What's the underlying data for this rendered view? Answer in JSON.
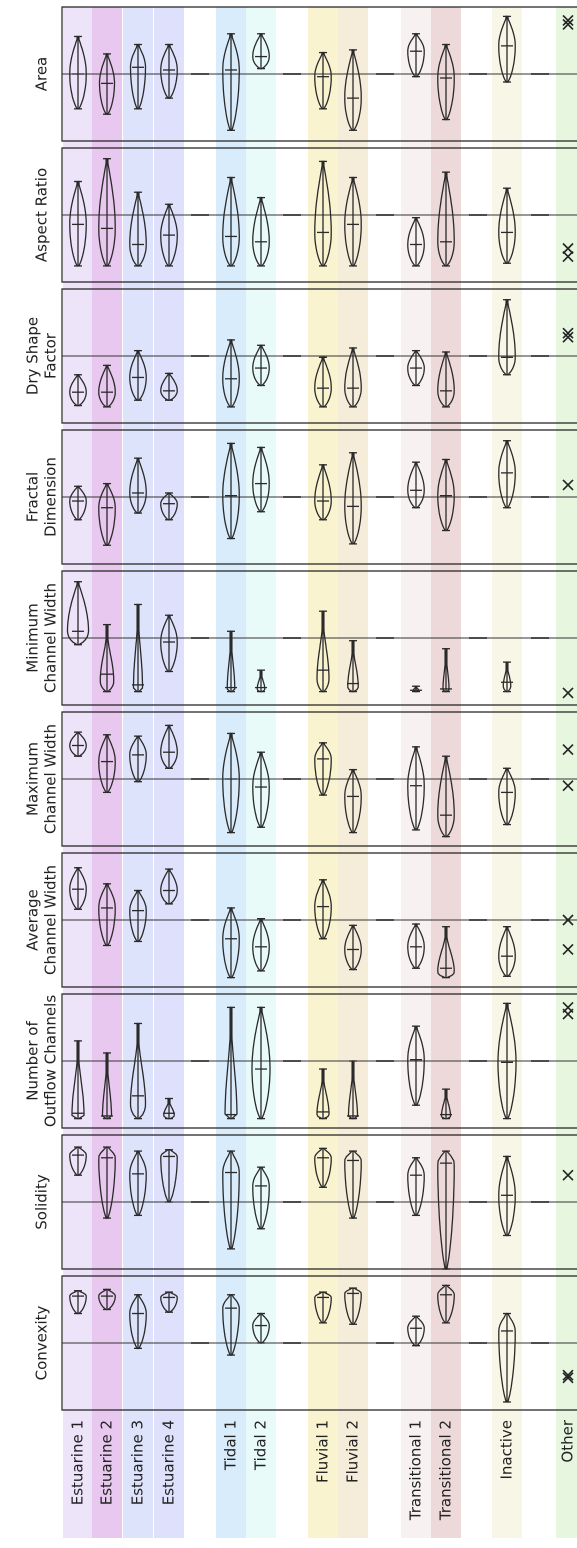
{
  "chart_data": {
    "type": "violin",
    "categories": [
      {
        "label": "Estuarine 1",
        "color": "#ede4fa"
      },
      {
        "label": "Estuarine 2",
        "color": "#e8c8ee"
      },
      {
        "label": "Estuarine 3",
        "color": "#dde3fa"
      },
      {
        "label": "Estuarine 4",
        "color": "#dfe0fb"
      },
      {
        "label": "Tidal 1",
        "color": "#d9ecfb"
      },
      {
        "label": "Tidal 2",
        "color": "#e8fbf8"
      },
      {
        "label": "Fluvial 1",
        "color": "#f9f3d0"
      },
      {
        "label": "Fluvial 2",
        "color": "#f6ecda"
      },
      {
        "label": "Transitional 1",
        "color": "#f7f1f2"
      },
      {
        "label": "Transitional 2",
        "color": "#eed9da"
      },
      {
        "label": "Inactive",
        "color": "#f8f6e6"
      },
      {
        "label": "Other",
        "color": "#e7f6df"
      }
    ],
    "panels": [
      {
        "ylabel": [
          "Area"
        ],
        "violins": [
          {
            "top": 0.22,
            "bot": 0.76,
            "med": 0.5,
            "w": 0.55
          },
          {
            "top": 0.35,
            "bot": 0.8,
            "med": 0.57,
            "w": 0.5
          },
          {
            "top": 0.28,
            "bot": 0.76,
            "med": 0.45,
            "w": 0.5
          },
          {
            "top": 0.28,
            "bot": 0.68,
            "med": 0.47,
            "w": 0.55
          },
          {
            "top": 0.2,
            "bot": 0.92,
            "med": 0.47,
            "w": 0.55
          },
          {
            "top": 0.2,
            "bot": 0.46,
            "med": 0.37,
            "w": 0.55
          },
          {
            "top": 0.34,
            "bot": 0.76,
            "med": 0.52,
            "w": 0.55
          },
          {
            "top": 0.32,
            "bot": 0.92,
            "med": 0.68,
            "w": 0.55
          },
          {
            "top": 0.2,
            "bot": 0.52,
            "med": 0.33,
            "w": 0.55
          },
          {
            "top": 0.28,
            "bot": 0.84,
            "med": 0.53,
            "w": 0.55
          },
          {
            "top": 0.07,
            "bot": 0.56,
            "med": 0.29,
            "w": 0.55
          },
          {
            "crosses": [
              0.1,
              0.13
            ]
          }
        ]
      },
      {
        "ylabel": [
          "Aspect Ratio"
        ],
        "violins": [
          {
            "top": 0.25,
            "bot": 0.88,
            "med": 0.57,
            "w": 0.55
          },
          {
            "top": 0.08,
            "bot": 0.88,
            "med": 0.6,
            "w": 0.55
          },
          {
            "top": 0.33,
            "bot": 0.88,
            "med": 0.72,
            "w": 0.55
          },
          {
            "top": 0.42,
            "bot": 0.88,
            "med": 0.65,
            "w": 0.55
          },
          {
            "top": 0.22,
            "bot": 0.88,
            "med": 0.66,
            "w": 0.55
          },
          {
            "top": 0.37,
            "bot": 0.88,
            "med": 0.7,
            "w": 0.55
          },
          {
            "top": 0.1,
            "bot": 0.88,
            "med": 0.63,
            "w": 0.55
          },
          {
            "top": 0.22,
            "bot": 0.88,
            "med": 0.57,
            "w": 0.55
          },
          {
            "top": 0.52,
            "bot": 0.88,
            "med": 0.72,
            "w": 0.55
          },
          {
            "top": 0.18,
            "bot": 0.88,
            "med": 0.7,
            "w": 0.55
          },
          {
            "top": 0.3,
            "bot": 0.86,
            "med": 0.63,
            "w": 0.55
          },
          {
            "crosses": [
              0.75,
              0.81
            ]
          }
        ]
      },
      {
        "ylabel": [
          "Dry Shape",
          "Factor"
        ],
        "violins": [
          {
            "top": 0.64,
            "bot": 0.87,
            "med": 0.77,
            "w": 0.55
          },
          {
            "top": 0.57,
            "bot": 0.88,
            "med": 0.77,
            "w": 0.55
          },
          {
            "top": 0.46,
            "bot": 0.83,
            "med": 0.66,
            "w": 0.55
          },
          {
            "top": 0.63,
            "bot": 0.83,
            "med": 0.76,
            "w": 0.55
          },
          {
            "top": 0.38,
            "bot": 0.88,
            "med": 0.67,
            "w": 0.55
          },
          {
            "top": 0.42,
            "bot": 0.72,
            "med": 0.59,
            "w": 0.55
          },
          {
            "top": 0.51,
            "bot": 0.88,
            "med": 0.74,
            "w": 0.55
          },
          {
            "top": 0.44,
            "bot": 0.88,
            "med": 0.74,
            "w": 0.55
          },
          {
            "top": 0.46,
            "bot": 0.72,
            "med": 0.59,
            "w": 0.55
          },
          {
            "top": 0.47,
            "bot": 0.88,
            "med": 0.76,
            "w": 0.55
          },
          {
            "top": 0.08,
            "bot": 0.64,
            "med": 0.51,
            "w": 0.55
          },
          {
            "crosses": [
              0.33,
              0.36
            ]
          }
        ]
      },
      {
        "ylabel": [
          "Fractal",
          "Dimension"
        ],
        "violins": [
          {
            "top": 0.42,
            "bot": 0.67,
            "med": 0.53,
            "w": 0.55
          },
          {
            "top": 0.4,
            "bot": 0.86,
            "med": 0.58,
            "w": 0.55
          },
          {
            "top": 0.21,
            "bot": 0.62,
            "med": 0.47,
            "w": 0.55
          },
          {
            "top": 0.47,
            "bot": 0.67,
            "med": 0.55,
            "w": 0.55
          },
          {
            "top": 0.1,
            "bot": 0.81,
            "med": 0.49,
            "w": 0.55
          },
          {
            "top": 0.13,
            "bot": 0.61,
            "med": 0.4,
            "w": 0.55
          },
          {
            "top": 0.26,
            "bot": 0.67,
            "med": 0.53,
            "w": 0.55
          },
          {
            "top": 0.17,
            "bot": 0.85,
            "med": 0.57,
            "w": 0.55
          },
          {
            "top": 0.24,
            "bot": 0.58,
            "med": 0.45,
            "w": 0.55
          },
          {
            "top": 0.22,
            "bot": 0.75,
            "med": 0.49,
            "w": 0.55
          },
          {
            "top": 0.08,
            "bot": 0.58,
            "med": 0.32,
            "w": 0.55
          },
          {
            "crosses": [
              0.41
            ]
          }
        ]
      },
      {
        "ylabel": [
          "Minimum",
          "Channel Width"
        ],
        "violins": [
          {
            "top": 0.08,
            "bot": 0.55,
            "med": 0.45,
            "w": 0.7
          },
          {
            "top": 0.4,
            "bot": 0.9,
            "med": 0.77,
            "w": 0.45,
            "skew": 1
          },
          {
            "top": 0.25,
            "bot": 0.9,
            "med": 0.85,
            "w": 0.3,
            "skew": 1
          },
          {
            "top": 0.33,
            "bot": 0.75,
            "med": 0.53,
            "w": 0.55
          },
          {
            "top": 0.45,
            "bot": 0.9,
            "med": 0.87,
            "w": 0.25,
            "skew": 1
          },
          {
            "top": 0.74,
            "bot": 0.9,
            "med": 0.87,
            "w": 0.25,
            "skew": 1
          },
          {
            "top": 0.3,
            "bot": 0.9,
            "med": 0.74,
            "w": 0.4,
            "skew": 1
          },
          {
            "top": 0.52,
            "bot": 0.9,
            "med": 0.84,
            "w": 0.35,
            "skew": 1
          },
          {
            "top": 0.86,
            "bot": 0.9,
            "med": 0.89,
            "w": 0.2,
            "skew": 1
          },
          {
            "top": 0.58,
            "bot": 0.9,
            "med": 0.88,
            "w": 0.2,
            "skew": 1
          },
          {
            "top": 0.68,
            "bot": 0.9,
            "med": 0.83,
            "w": 0.25,
            "skew": 1
          },
          {
            "crosses": [
              0.91
            ]
          }
        ]
      },
      {
        "ylabel": [
          "Maximum",
          "Channel Width"
        ],
        "violins": [
          {
            "top": 0.15,
            "bot": 0.33,
            "med": 0.25,
            "w": 0.55
          },
          {
            "top": 0.17,
            "bot": 0.6,
            "med": 0.37,
            "w": 0.55
          },
          {
            "top": 0.18,
            "bot": 0.52,
            "med": 0.32,
            "w": 0.55
          },
          {
            "top": 0.1,
            "bot": 0.42,
            "med": 0.3,
            "w": 0.55
          },
          {
            "top": 0.16,
            "bot": 0.9,
            "med": 0.5,
            "w": 0.55
          },
          {
            "top": 0.3,
            "bot": 0.86,
            "med": 0.56,
            "w": 0.55
          },
          {
            "top": 0.23,
            "bot": 0.62,
            "med": 0.35,
            "w": 0.55
          },
          {
            "top": 0.43,
            "bot": 0.9,
            "med": 0.63,
            "w": 0.55
          },
          {
            "top": 0.26,
            "bot": 0.88,
            "med": 0.55,
            "w": 0.55
          },
          {
            "top": 0.33,
            "bot": 0.93,
            "med": 0.77,
            "w": 0.55
          },
          {
            "top": 0.42,
            "bot": 0.84,
            "med": 0.6,
            "w": 0.55
          },
          {
            "crosses": [
              0.28,
              0.55
            ]
          }
        ]
      },
      {
        "ylabel": [
          "Average",
          "Channel Width"
        ],
        "violins": [
          {
            "top": 0.11,
            "bot": 0.42,
            "med": 0.27,
            "w": 0.55
          },
          {
            "top": 0.23,
            "bot": 0.69,
            "med": 0.41,
            "w": 0.55
          },
          {
            "top": 0.28,
            "bot": 0.66,
            "med": 0.43,
            "w": 0.55
          },
          {
            "top": 0.12,
            "bot": 0.38,
            "med": 0.28,
            "w": 0.55
          },
          {
            "top": 0.41,
            "bot": 0.93,
            "med": 0.64,
            "w": 0.55
          },
          {
            "top": 0.49,
            "bot": 0.88,
            "med": 0.7,
            "w": 0.55
          },
          {
            "top": 0.2,
            "bot": 0.64,
            "med": 0.4,
            "w": 0.55
          },
          {
            "top": 0.54,
            "bot": 0.87,
            "med": 0.72,
            "w": 0.55
          },
          {
            "top": 0.53,
            "bot": 0.86,
            "med": 0.7,
            "w": 0.55
          },
          {
            "top": 0.55,
            "bot": 0.93,
            "med": 0.86,
            "w": 0.55,
            "skew": 1
          },
          {
            "top": 0.55,
            "bot": 0.92,
            "med": 0.77,
            "w": 0.55
          },
          {
            "crosses": [
              0.5,
              0.72
            ]
          }
        ]
      },
      {
        "ylabel": [
          "Number of",
          "Outflow Channels"
        ],
        "violins": [
          {
            "top": 0.35,
            "bot": 0.93,
            "med": 0.89,
            "w": 0.4,
            "skew": 1
          },
          {
            "top": 0.44,
            "bot": 0.93,
            "med": 0.91,
            "w": 0.3,
            "skew": 1
          },
          {
            "top": 0.22,
            "bot": 0.93,
            "med": 0.76,
            "w": 0.5,
            "skew": 0.5
          },
          {
            "top": 0.78,
            "bot": 0.93,
            "med": 0.89,
            "w": 0.35,
            "skew": 1
          },
          {
            "top": 0.1,
            "bot": 0.93,
            "med": 0.9,
            "w": 0.4,
            "skew": 1
          },
          {
            "top": 0.1,
            "bot": 0.93,
            "med": 0.56,
            "w": 0.6
          },
          {
            "top": 0.56,
            "bot": 0.93,
            "med": 0.88,
            "w": 0.4,
            "skew": 1
          },
          {
            "top": 0.5,
            "bot": 0.93,
            "med": 0.91,
            "w": 0.3,
            "skew": 1
          },
          {
            "top": 0.24,
            "bot": 0.83,
            "med": 0.49,
            "w": 0.55
          },
          {
            "top": 0.71,
            "bot": 0.93,
            "med": 0.9,
            "w": 0.3,
            "skew": 1
          },
          {
            "top": 0.07,
            "bot": 0.93,
            "med": 0.51,
            "w": 0.6
          },
          {
            "crosses": [
              0.1,
              0.15
            ]
          }
        ]
      },
      {
        "ylabel": [
          "Solidity"
        ],
        "violins": [
          {
            "top": 0.09,
            "bot": 0.3,
            "med": 0.15,
            "w": 0.55
          },
          {
            "top": 0.09,
            "bot": 0.62,
            "med": 0.17,
            "w": 0.55
          },
          {
            "top": 0.12,
            "bot": 0.6,
            "med": 0.29,
            "w": 0.55
          },
          {
            "top": 0.11,
            "bot": 0.5,
            "med": 0.16,
            "w": 0.55
          },
          {
            "top": 0.12,
            "bot": 0.85,
            "med": 0.28,
            "w": 0.55
          },
          {
            "top": 0.24,
            "bot": 0.7,
            "med": 0.38,
            "w": 0.55
          },
          {
            "top": 0.1,
            "bot": 0.39,
            "med": 0.17,
            "w": 0.55
          },
          {
            "top": 0.12,
            "bot": 0.62,
            "med": 0.19,
            "w": 0.55
          },
          {
            "top": 0.17,
            "bot": 0.6,
            "med": 0.3,
            "w": 0.55
          },
          {
            "top": 0.12,
            "bot": 1.0,
            "med": 0.21,
            "w": 0.55
          },
          {
            "top": 0.16,
            "bot": 0.75,
            "med": 0.45,
            "w": 0.55
          },
          {
            "crosses": [
              0.3
            ]
          }
        ]
      },
      {
        "ylabel": [
          "Convexity"
        ],
        "violins": [
          {
            "top": 0.11,
            "bot": 0.28,
            "med": 0.15,
            "w": 0.55
          },
          {
            "top": 0.1,
            "bot": 0.25,
            "med": 0.15,
            "w": 0.55
          },
          {
            "top": 0.14,
            "bot": 0.54,
            "med": 0.28,
            "w": 0.55
          },
          {
            "top": 0.12,
            "bot": 0.27,
            "med": 0.16,
            "w": 0.55
          },
          {
            "top": 0.14,
            "bot": 0.59,
            "med": 0.24,
            "w": 0.55
          },
          {
            "top": 0.28,
            "bot": 0.5,
            "med": 0.37,
            "w": 0.55
          },
          {
            "top": 0.12,
            "bot": 0.35,
            "med": 0.16,
            "w": 0.55
          },
          {
            "top": 0.09,
            "bot": 0.36,
            "med": 0.13,
            "w": 0.55
          },
          {
            "top": 0.3,
            "bot": 0.52,
            "med": 0.39,
            "w": 0.55
          },
          {
            "top": 0.07,
            "bot": 0.35,
            "med": 0.14,
            "w": 0.55
          },
          {
            "top": 0.28,
            "bot": 0.94,
            "med": 0.41,
            "w": 0.55
          },
          {
            "crosses": [
              0.74,
              0.76
            ]
          }
        ]
      }
    ]
  }
}
